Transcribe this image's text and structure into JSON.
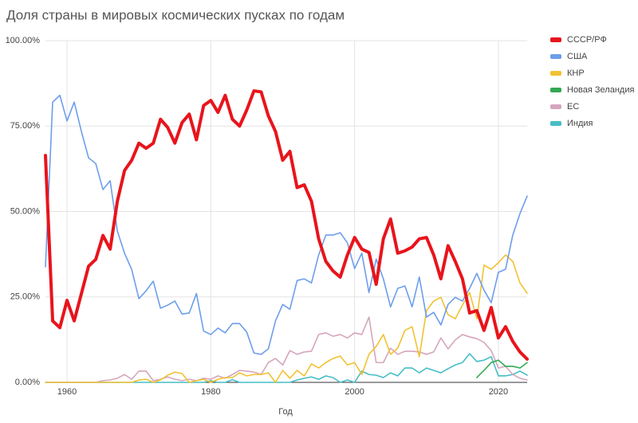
{
  "chart_data": {
    "type": "line",
    "title": "Доля страны в мировых космических пусках по годам",
    "x_label": "Год",
    "x": [
      1957,
      1958,
      1959,
      1960,
      1961,
      1962,
      1963,
      1964,
      1965,
      1966,
      1967,
      1968,
      1969,
      1970,
      1971,
      1972,
      1973,
      1974,
      1975,
      1976,
      1977,
      1978,
      1979,
      1980,
      1981,
      1982,
      1983,
      1984,
      1985,
      1986,
      1987,
      1988,
      1989,
      1990,
      1991,
      1992,
      1993,
      1994,
      1995,
      1996,
      1997,
      1998,
      1999,
      2000,
      2001,
      2002,
      2003,
      2004,
      2005,
      2006,
      2007,
      2008,
      2009,
      2010,
      2011,
      2012,
      2013,
      2014,
      2015,
      2016,
      2017,
      2018,
      2019,
      2020,
      2021,
      2022,
      2023,
      2024
    ],
    "xlim": [
      1957,
      2024
    ],
    "xticks": [
      1960,
      1980,
      2000,
      2020
    ],
    "ylim": [
      0,
      100
    ],
    "yticks": [
      {
        "value": 0,
        "label": "0.00%"
      },
      {
        "value": 25,
        "label": "25.00%"
      },
      {
        "value": 50,
        "label": "50.00%"
      },
      {
        "value": 75,
        "label": "75.00%"
      },
      {
        "value": 100,
        "label": "100.00%"
      }
    ],
    "grid": true,
    "legend": "right",
    "series": [
      {
        "name": "СССР/РФ",
        "color": "#e8141c",
        "width": 4,
        "values": [
          66.4,
          18,
          16,
          24,
          18,
          26,
          34,
          36,
          43,
          39,
          53,
          62,
          65,
          70,
          68.5,
          70,
          77,
          74.6,
          70,
          76,
          78.5,
          71,
          81,
          82.5,
          79,
          84,
          77,
          75,
          79.7,
          85.3,
          85,
          78,
          73.4,
          65,
          67.6,
          57,
          57.8,
          53,
          42,
          35.4,
          32.6,
          30.8,
          37.3,
          42.4,
          39,
          38,
          28.7,
          42,
          47.8,
          37.8,
          38.5,
          39.6,
          42,
          42.4,
          37.3,
          30.3,
          40,
          35.4,
          30.3,
          20.3,
          21,
          15.2,
          21.9,
          13,
          16.3,
          12,
          8.9,
          6.8
        ]
      },
      {
        "name": "США",
        "color": "#6d9eeb",
        "width": 1.6,
        "values": [
          33.8,
          82,
          84,
          76.5,
          82,
          73.4,
          65.7,
          64,
          56.4,
          59,
          44.3,
          37.8,
          33,
          24.5,
          26.8,
          29.6,
          21.7,
          22.6,
          23.8,
          20,
          20.3,
          26,
          15,
          14,
          15.9,
          14.5,
          17.2,
          17.2,
          14.7,
          8.6,
          8.2,
          9.8,
          18,
          22.8,
          21.4,
          29.8,
          30.3,
          29.1,
          37.3,
          43.1,
          43.1,
          43.8,
          40.8,
          33.3,
          37.8,
          26.3,
          36.1,
          30.3,
          22.1,
          27.5,
          28.2,
          22.1,
          30.8,
          19.1,
          20.5,
          16.8,
          22.8,
          24.9,
          23.8,
          27.5,
          31.9,
          27,
          23.3,
          32.2,
          33.1,
          43.1,
          49.4,
          54.5
        ]
      },
      {
        "name": "КНР",
        "color": "#f1c232",
        "width": 1.6,
        "values": [
          0,
          0,
          0,
          0,
          0,
          0,
          0,
          0,
          0,
          0,
          0,
          0,
          0,
          0.7,
          0.9,
          0,
          0.7,
          2.1,
          3,
          2.6,
          0,
          0.5,
          0.9,
          0,
          0.9,
          1.4,
          1.4,
          2.8,
          1.9,
          2.3,
          2.3,
          2.8,
          0,
          3.5,
          1.2,
          3.5,
          1.9,
          5.4,
          4.2,
          5.8,
          7,
          7.7,
          5.1,
          5.8,
          2.3,
          8.2,
          10.5,
          14,
          8.2,
          10,
          15.2,
          16.3,
          7.5,
          21,
          23.8,
          24.9,
          19.8,
          18.6,
          22.6,
          26.3,
          18.6,
          34.3,
          33.1,
          35,
          37.3,
          35.4,
          29.1,
          26.1
        ]
      },
      {
        "name": "Новая Зеландия",
        "color": "#34a853",
        "width": 1.6,
        "values": [
          null,
          null,
          null,
          null,
          null,
          null,
          null,
          null,
          null,
          null,
          null,
          null,
          null,
          null,
          null,
          null,
          null,
          null,
          null,
          null,
          null,
          null,
          null,
          null,
          null,
          null,
          null,
          null,
          null,
          null,
          null,
          null,
          null,
          null,
          null,
          null,
          null,
          null,
          null,
          null,
          null,
          null,
          null,
          null,
          null,
          null,
          null,
          null,
          null,
          null,
          null,
          null,
          null,
          null,
          null,
          null,
          null,
          null,
          null,
          null,
          1.4,
          3.5,
          5.8,
          6.5,
          4.7,
          4.7,
          4.2,
          5.8
        ]
      },
      {
        "name": "ЕС",
        "color": "#d5a6bd",
        "width": 1.6,
        "values": [
          0,
          0,
          0,
          0,
          0,
          0,
          0,
          0,
          0.5,
          0.7,
          1.2,
          2.3,
          0.9,
          3.3,
          3.3,
          0.5,
          0.9,
          1.6,
          0.9,
          0.5,
          0.9,
          0.5,
          1.2,
          0.9,
          1.9,
          1.2,
          2.3,
          3.5,
          3.3,
          3,
          2.3,
          5.8,
          7,
          5.1,
          9.3,
          8.2,
          8.9,
          9.1,
          14,
          14.5,
          13.5,
          14,
          13,
          14.5,
          14,
          19.1,
          5.8,
          5.8,
          10,
          8.2,
          9.1,
          9.1,
          8.9,
          8.2,
          8.9,
          13,
          9.8,
          12.4,
          14,
          13.3,
          12.8,
          11.7,
          9.3,
          4.2,
          4.7,
          2.3,
          1.2,
          0.7
        ]
      },
      {
        "name": "Индия",
        "color": "#46bdc6",
        "width": 1.6,
        "values": [
          0,
          0,
          0,
          0,
          0,
          0,
          0,
          0,
          0,
          0,
          0,
          0,
          0,
          0,
          0,
          0,
          0,
          0,
          0,
          0,
          0,
          0,
          0,
          0.5,
          0,
          0,
          0.8,
          0,
          0,
          0,
          0,
          0,
          0,
          0,
          0,
          0.7,
          1.2,
          1.6,
          0.9,
          1.9,
          1.4,
          0,
          0.7,
          0,
          3.3,
          2.3,
          2.1,
          1.4,
          2.8,
          1.9,
          4.2,
          4.2,
          2.8,
          4.2,
          3.5,
          2.8,
          4,
          5.1,
          5.8,
          8.4,
          6.1,
          6.5,
          7.5,
          1.9,
          1.9,
          2.3,
          3.3,
          2.1
        ]
      }
    ]
  }
}
